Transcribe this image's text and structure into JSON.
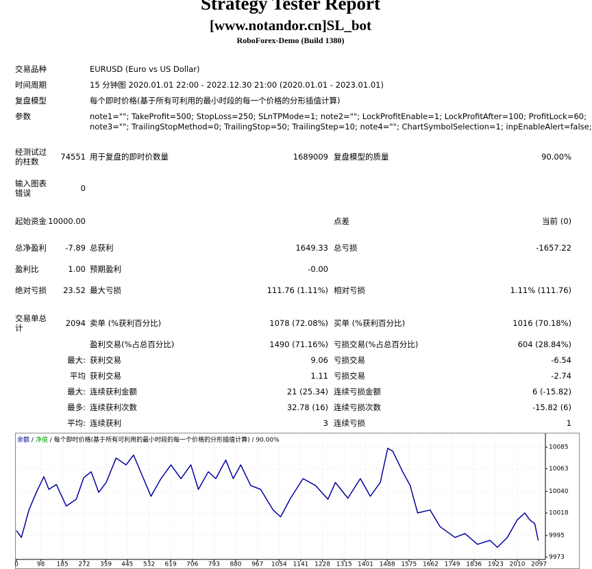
{
  "header": {
    "title": "Strategy Tester Report",
    "subtitle": "[www.notandor.cn]SL_bot",
    "build": "RoboForex-Demo (Build 1380)"
  },
  "info": [
    {
      "label": "交易品种",
      "text": [
        "EURUSD (Euro vs US Dollar)"
      ]
    },
    {
      "label": "时间周期",
      "text": [
        "15 分钟图 2020.01.01 22:00 - 2022.12.30 21:00 (2020.01.01 - 2023.01.01)"
      ]
    },
    {
      "label": "复盘模型",
      "text": [
        "每个即时价格(基于所有可利用的最小时段的每一个价格的分形插值计算)"
      ]
    },
    {
      "label": "参数",
      "text": [
        "note1=\"\"; TakeProfit=500; StopLoss=250; SLnTPMode=1; note2=\"\"; LockProfitEnable=1; LockProfitAfter=100; ProfitLock=60;",
        "note3=\"\"; TrailingStopMethod=0; TrailingStop=50; TrailingStep=10; note4=\"\"; ChartSymbolSelection=1; inpEnableAlert=false;"
      ]
    }
  ],
  "rows": [
    {
      "label": "经测试过的柱数",
      "value": "74551",
      "label2": "用于复盘的即时价数量",
      "value2": "1689009",
      "label3": "复盘模型的质量",
      "value3": "90.00%"
    },
    {
      "label": "输入图表错误",
      "value": "0"
    },
    {
      "label": "起始资金",
      "value": "10000.00",
      "label3": "点差",
      "value3": "当前 (0)"
    },
    {
      "label": "总净盈利",
      "value": "-7.89",
      "label2": "总获利",
      "value2": "1649.33",
      "label3": "总亏损",
      "value3": "-1657.22"
    },
    {
      "label": "盈利比",
      "value": "1.00",
      "label2": "预期盈利",
      "value2": "-0.00"
    },
    {
      "label": "绝对亏损",
      "value": "23.52",
      "label2": "最大亏损",
      "value2": "111.76 (1.11%)",
      "label3": "相对亏损",
      "value3": "1.11% (111.76)"
    },
    {
      "label": "交易单总计",
      "value": "2094",
      "label2": "卖单 (%获利百分比)",
      "value2": "1078 (72.08%)",
      "label3": "买单 (%获利百分比)",
      "value3": "1016 (70.18%)"
    },
    {
      "label2": "盈利交易(%占总百分比)",
      "value2": "1490 (71.16%)",
      "label3": "亏损交易(%占总百分比)",
      "value3": "604 (28.84%)"
    },
    {
      "value": "最大:",
      "label2": "获利交易",
      "value2": "9.06",
      "label3": "亏损交易",
      "value3": "-6.54"
    },
    {
      "value": "平均",
      "label2": "获利交易",
      "value2": "1.11",
      "label3": "亏损交易",
      "value3": "-2.74"
    },
    {
      "value": "最大:",
      "label2": "连续获利金额",
      "value2": "21 (25.34)",
      "label3": "连续亏损金额",
      "value3": "6 (-15.82)"
    },
    {
      "value": "最多:",
      "label2": "连续获利次数",
      "value2": "32.78 (16)",
      "label3": "连续亏损次数",
      "value3": "-15.82 (6)"
    },
    {
      "value": "平均:",
      "label2": "连续获利",
      "value2": "3",
      "label3": "连续亏损",
      "value3": "1"
    }
  ],
  "chart_data": {
    "type": "line",
    "legend_extra": {
      "name": "净值",
      "color": "#00a000"
    },
    "separator": " / ",
    "model": "每个即时价格(基于所有可利用的最小时段的每一个价格的分形插值计算)",
    "quality": "90.00%",
    "x": [
      0,
      20,
      50,
      80,
      110,
      130,
      160,
      200,
      240,
      270,
      300,
      330,
      360,
      400,
      440,
      470,
      510,
      540,
      580,
      620,
      660,
      700,
      730,
      770,
      800,
      840,
      870,
      900,
      940,
      980,
      1030,
      1060,
      1100,
      1150,
      1200,
      1250,
      1280,
      1330,
      1380,
      1420,
      1460,
      1490,
      1510,
      1550,
      1580,
      1610,
      1660,
      1700,
      1760,
      1800,
      1850,
      1900,
      1930,
      1970,
      2010,
      2040,
      2060,
      2080,
      2094
    ],
    "series": [
      {
        "name": "余额",
        "color": "#0000a0",
        "values": [
          10000,
          9993,
          10021,
          10039,
          10055,
          10042,
          10047,
          10025,
          10032,
          10054,
          10060,
          10039,
          10049,
          10074,
          10067,
          10077,
          10053,
          10035,
          10053,
          10067,
          10053,
          10067,
          10042,
          10060,
          10053,
          10072,
          10053,
          10067,
          10046,
          10042,
          10021,
          10014,
          10033,
          10053,
          10046,
          10032,
          10049,
          10033,
          10053,
          10035,
          10049,
          10084,
          10081,
          10060,
          10046,
          10018,
          10021,
          10004,
          9993,
          9997,
          9986,
          9990,
          9983,
          9993,
          10011,
          10018,
          10011,
          10007,
          9990
        ]
      }
    ],
    "xlim": [
      0,
      2120
    ],
    "ylim": [
      9972,
      10097
    ],
    "xticks": [
      0,
      98,
      185,
      272,
      359,
      445,
      532,
      619,
      706,
      793,
      880,
      967,
      1054,
      1141,
      1228,
      1315,
      1401,
      1488,
      1575,
      1662,
      1749,
      1836,
      1923,
      2010,
      2097
    ],
    "yticks": [
      9973,
      9995,
      10018,
      10040,
      10063,
      10085
    ],
    "grid": true
  }
}
